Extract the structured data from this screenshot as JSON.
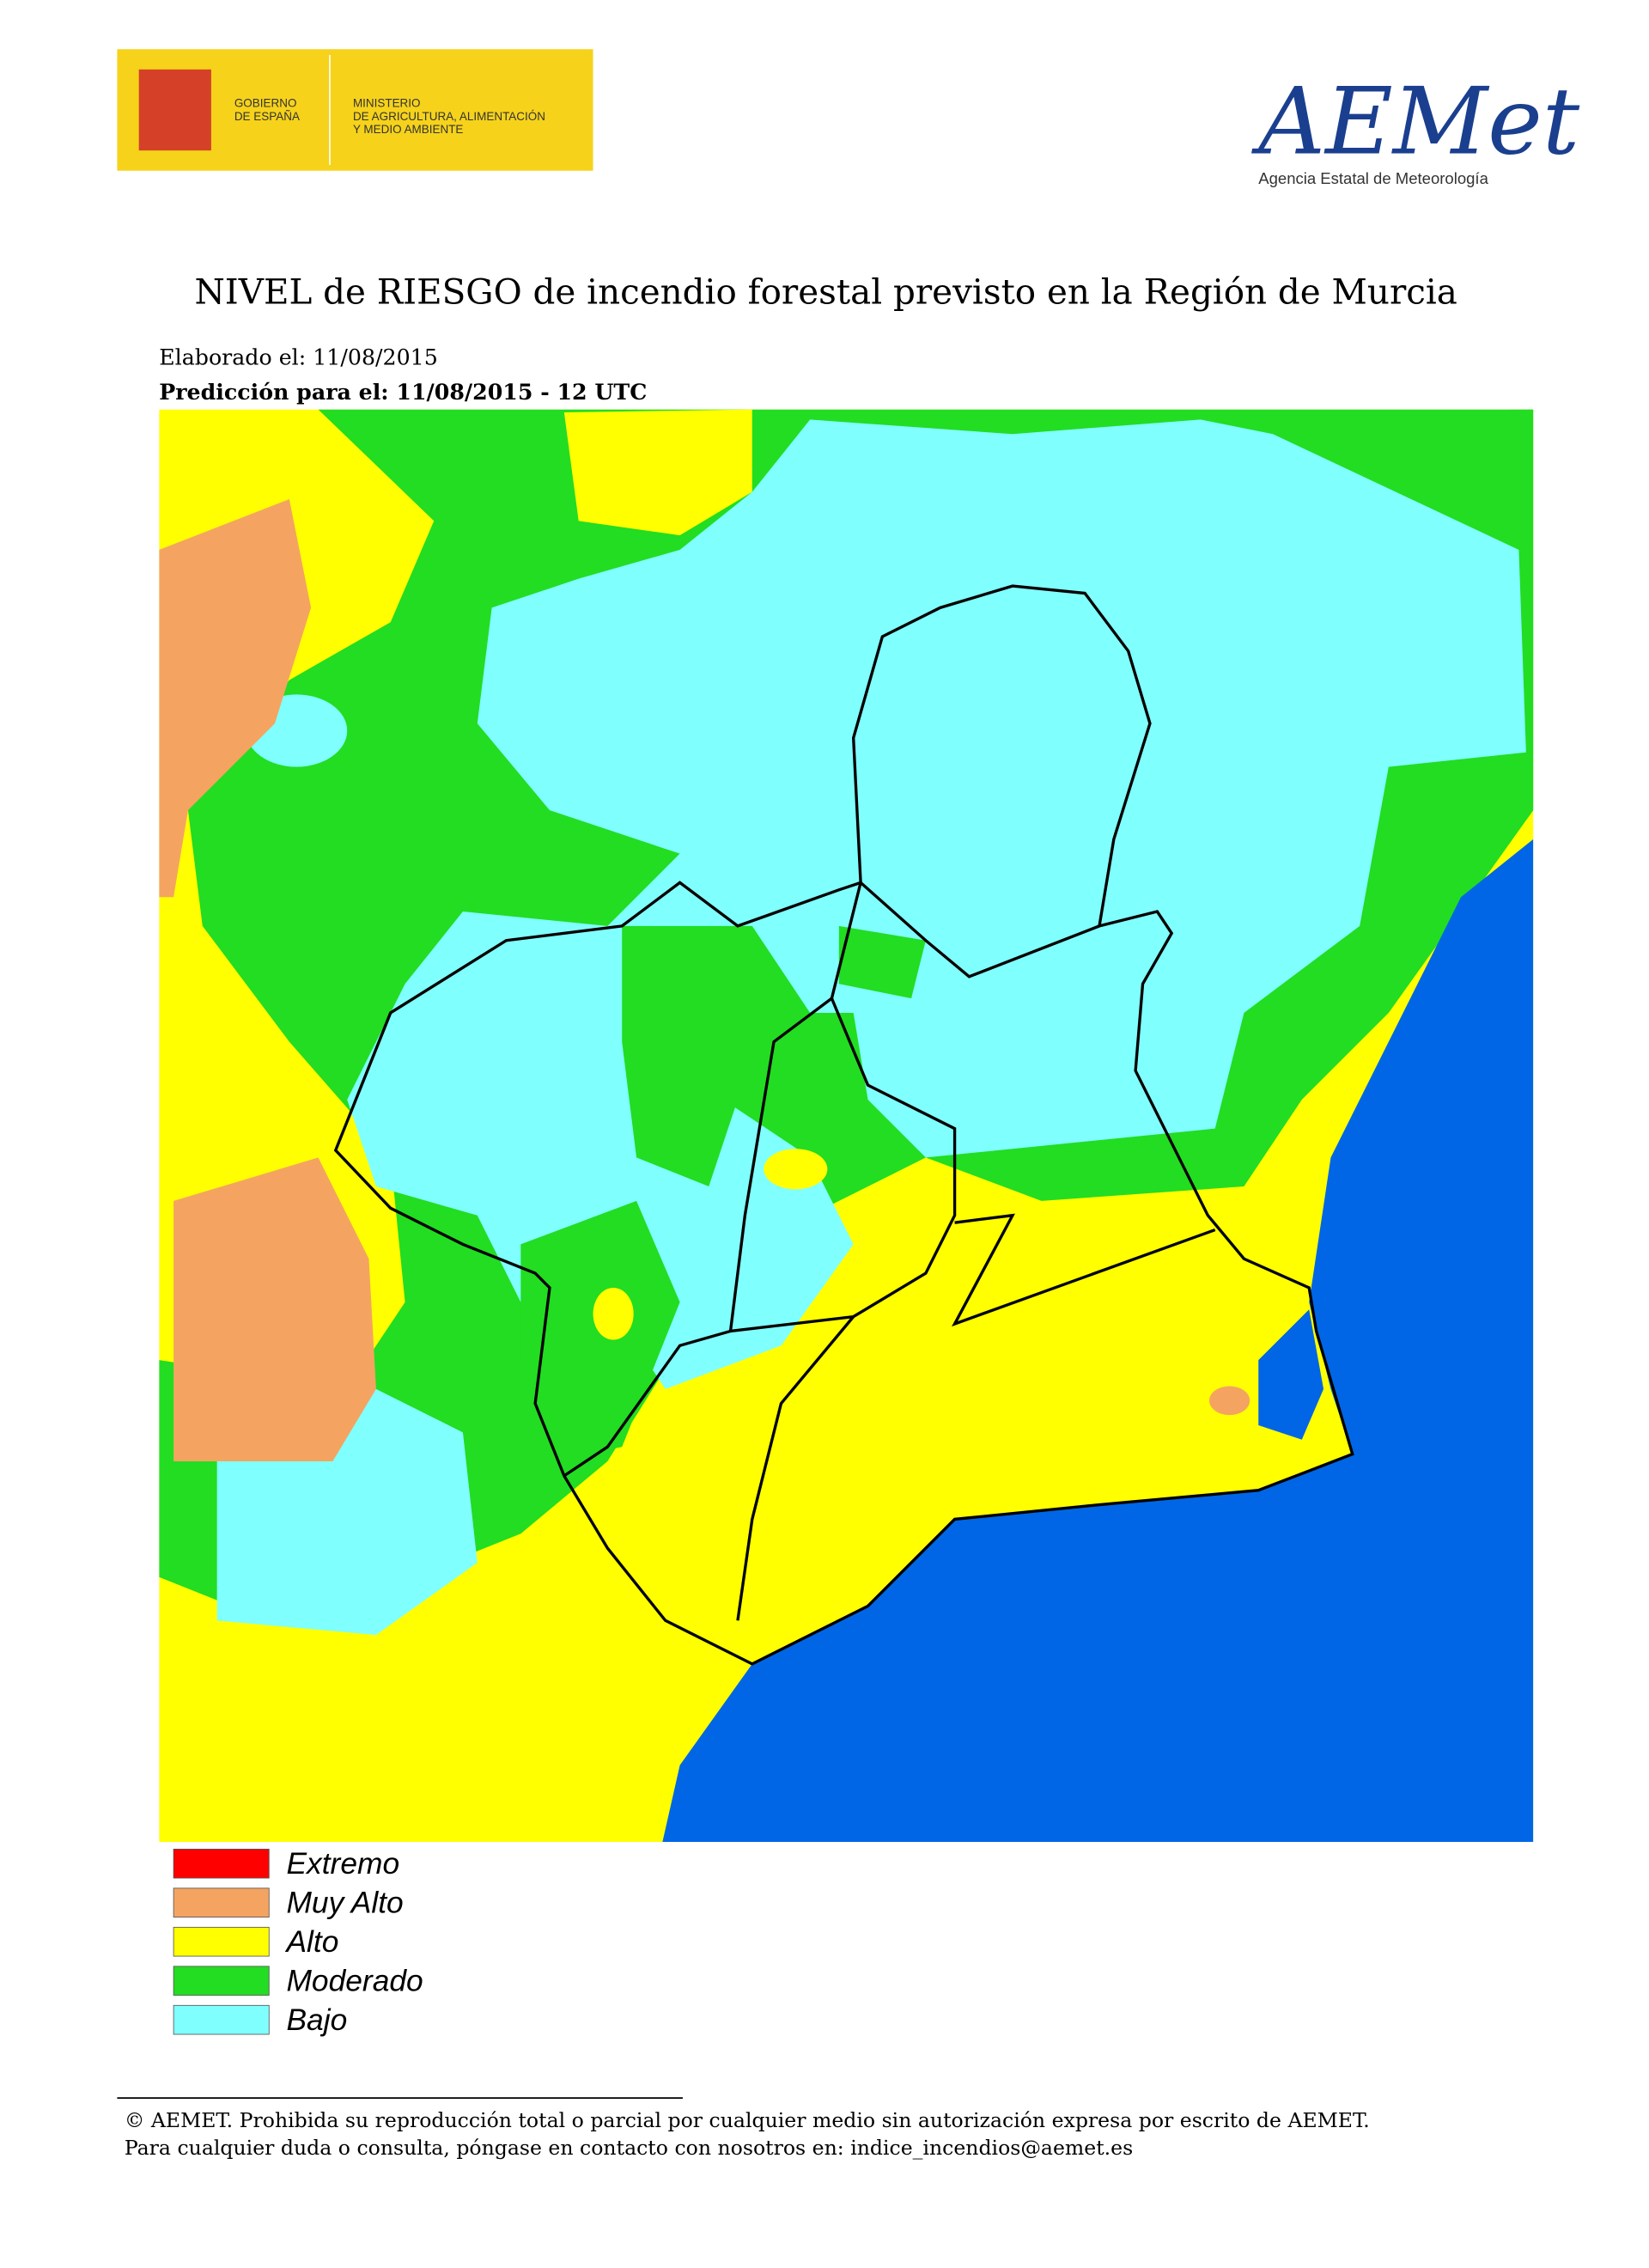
{
  "header": {
    "gov_line1": "GOBIERNO",
    "gov_line2": "DE ESPAÑA",
    "ministry_line1": "MINISTERIO",
    "ministry_line2": "DE AGRICULTURA, ALIMENTACIÓN",
    "ministry_line3": "Y MEDIO AMBIENTE",
    "logo": "AEMet",
    "agency": "Agencia Estatal de Meteorología"
  },
  "title": "NIVEL de RIESGO de incendio forestal previsto en la Región de Murcia",
  "elaborado": "Elaborado el: 11/08/2015",
  "prediccion": "Predicción para el: 11/08/2015 - 12 UTC",
  "legend": [
    {
      "name": "Extremo",
      "color": "#ff0000"
    },
    {
      "name": "Muy Alto",
      "color": "#f4a460"
    },
    {
      "name": "Alto",
      "color": "#ffff00"
    },
    {
      "name": "Moderado",
      "color": "#22dd22"
    },
    {
      "name": "Bajo",
      "color": "#80ffff"
    }
  ],
  "footer": {
    "line1": "© AEMET. Prohibida su reproducción total o parcial por cualquier medio sin autorización expresa por escrito de AEMET.",
    "line2": "Para cualquier duda o consulta, póngase en contacto con nosotros en: indice_incendios@aemet.es"
  }
}
